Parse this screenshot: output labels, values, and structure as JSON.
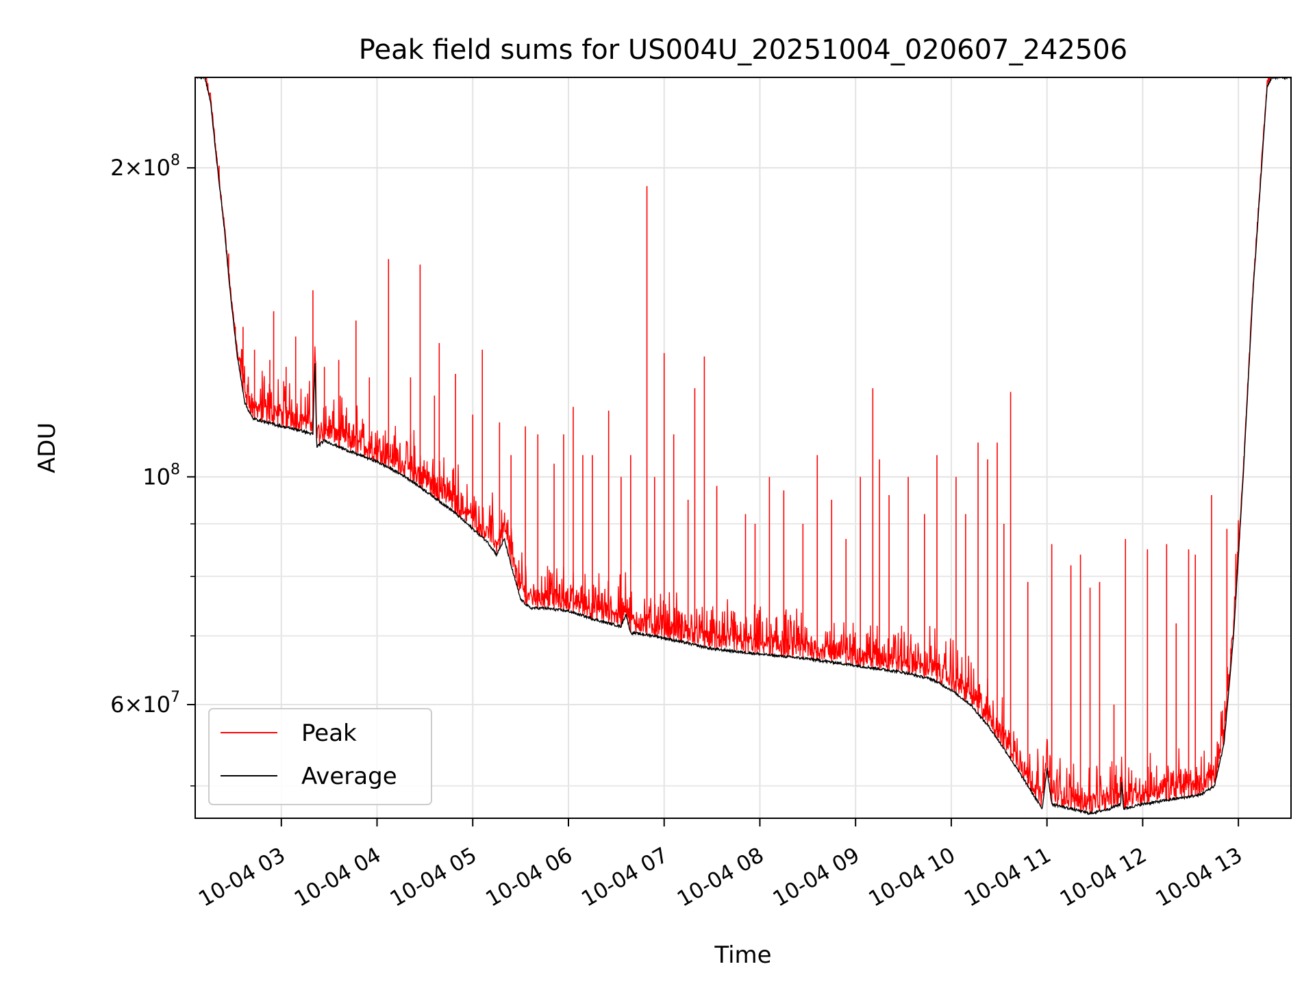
{
  "chart_data": {
    "type": "line",
    "title": "Peak field sums for US004U_20251004_020607_242506",
    "xlabel": "Time",
    "ylabel": "ADU",
    "yscale": "log",
    "ylim": [
      46500000,
      245000000
    ],
    "xlim_hours": [
      2.1,
      13.55
    ],
    "grid": true,
    "legend_position": "lower-left",
    "x_ticks": [
      {
        "hour": 3,
        "label": "10-04 03"
      },
      {
        "hour": 4,
        "label": "10-04 04"
      },
      {
        "hour": 5,
        "label": "10-04 05"
      },
      {
        "hour": 6,
        "label": "10-04 06"
      },
      {
        "hour": 7,
        "label": "10-04 07"
      },
      {
        "hour": 8,
        "label": "10-04 08"
      },
      {
        "hour": 9,
        "label": "10-04 09"
      },
      {
        "hour": 10,
        "label": "10-04 10"
      },
      {
        "hour": 11,
        "label": "10-04 11"
      },
      {
        "hour": 12,
        "label": "10-04 12"
      },
      {
        "hour": 13,
        "label": "10-04 13"
      }
    ],
    "y_major_ticks": [
      {
        "value": 60000000,
        "mantissa": "6",
        "base": "10",
        "exp": "7"
      },
      {
        "value": 100000000,
        "mantissa": "",
        "base": "10",
        "exp": "8"
      },
      {
        "value": 200000000,
        "mantissa": "2",
        "base": "10",
        "exp": "8"
      }
    ],
    "y_minor_ticks": [
      50000000,
      70000000,
      80000000,
      90000000
    ],
    "series": [
      {
        "name": "Peak",
        "color": "#ff0000",
        "baseline_from": "Average",
        "spikes": [
          [
            2.35,
            201000000
          ],
          [
            2.45,
            165000000
          ],
          [
            2.52,
            140000000
          ],
          [
            2.6,
            140000000
          ],
          [
            2.72,
            133000000
          ],
          [
            2.8,
            125000000
          ],
          [
            2.88,
            130000000
          ],
          [
            2.92,
            145000000
          ],
          [
            3.05,
            128000000
          ],
          [
            3.15,
            137000000
          ],
          [
            3.33,
            152000000
          ],
          [
            3.45,
            128000000
          ],
          [
            3.6,
            130000000
          ],
          [
            3.78,
            142000000
          ],
          [
            3.92,
            125000000
          ],
          [
            4.12,
            163000000
          ],
          [
            4.35,
            125000000
          ],
          [
            4.45,
            161000000
          ],
          [
            4.6,
            120000000
          ],
          [
            4.65,
            135000000
          ],
          [
            4.82,
            126000000
          ],
          [
            5.0,
            115000000
          ],
          [
            5.1,
            133000000
          ],
          [
            5.28,
            113000000
          ],
          [
            5.4,
            105000000
          ],
          [
            5.55,
            112000000
          ],
          [
            5.68,
            110000000
          ],
          [
            5.85,
            103000000
          ],
          [
            5.95,
            110000000
          ],
          [
            6.05,
            117000000
          ],
          [
            6.15,
            105000000
          ],
          [
            6.25,
            105000000
          ],
          [
            6.42,
            116000000
          ],
          [
            6.55,
            100000000
          ],
          [
            6.65,
            105000000
          ],
          [
            6.82,
            192000000
          ],
          [
            6.9,
            100000000
          ],
          [
            7.0,
            132000000
          ],
          [
            7.1,
            110000000
          ],
          [
            7.25,
            95000000
          ],
          [
            7.32,
            122000000
          ],
          [
            7.42,
            131000000
          ],
          [
            7.55,
            98000000
          ],
          [
            7.85,
            92000000
          ],
          [
            7.95,
            90000000
          ],
          [
            8.1,
            100000000
          ],
          [
            8.25,
            97000000
          ],
          [
            8.45,
            90000000
          ],
          [
            8.6,
            105000000
          ],
          [
            8.75,
            95000000
          ],
          [
            8.9,
            87000000
          ],
          [
            9.05,
            100000000
          ],
          [
            9.18,
            122000000
          ],
          [
            9.25,
            104000000
          ],
          [
            9.35,
            96000000
          ],
          [
            9.55,
            100000000
          ],
          [
            9.72,
            92000000
          ],
          [
            9.85,
            105000000
          ],
          [
            10.05,
            100000000
          ],
          [
            10.15,
            92000000
          ],
          [
            10.28,
            108000000
          ],
          [
            10.38,
            104000000
          ],
          [
            10.48,
            108000000
          ],
          [
            10.55,
            90000000
          ],
          [
            10.62,
            121000000
          ],
          [
            10.8,
            79000000
          ],
          [
            11.05,
            86000000
          ],
          [
            11.25,
            82000000
          ],
          [
            11.35,
            84000000
          ],
          [
            11.45,
            78000000
          ],
          [
            11.55,
            79000000
          ],
          [
            11.7,
            60000000
          ],
          [
            11.82,
            87000000
          ],
          [
            12.05,
            85000000
          ],
          [
            12.25,
            86000000
          ],
          [
            12.35,
            72000000
          ],
          [
            12.48,
            85000000
          ],
          [
            12.55,
            84000000
          ],
          [
            12.72,
            96000000
          ],
          [
            12.88,
            89000000
          ],
          [
            13.0,
            90000000
          ],
          [
            13.18,
            165000000
          ]
        ]
      },
      {
        "name": "Average",
        "color": "#000000",
        "points": [
          [
            2.1,
            245000000
          ],
          [
            2.2,
            245000000
          ],
          [
            2.26,
            232000000
          ],
          [
            2.32,
            205000000
          ],
          [
            2.4,
            176000000
          ],
          [
            2.47,
            150000000
          ],
          [
            2.54,
            131000000
          ],
          [
            2.62,
            118000000
          ],
          [
            2.7,
            114000000
          ],
          [
            2.85,
            113000000
          ],
          [
            3.0,
            112000000
          ],
          [
            3.2,
            111000000
          ],
          [
            3.33,
            110000000
          ],
          [
            3.35,
            130000000
          ],
          [
            3.37,
            107000000
          ],
          [
            3.45,
            108500000
          ],
          [
            3.7,
            106000000
          ],
          [
            4.0,
            103500000
          ],
          [
            4.3,
            100000000
          ],
          [
            4.5,
            97000000
          ],
          [
            4.8,
            92500000
          ],
          [
            5.0,
            89000000
          ],
          [
            5.15,
            86500000
          ],
          [
            5.25,
            84000000
          ],
          [
            5.33,
            87000000
          ],
          [
            5.4,
            82000000
          ],
          [
            5.5,
            76000000
          ],
          [
            5.6,
            74500000
          ],
          [
            5.75,
            74500000
          ],
          [
            6.0,
            74000000
          ],
          [
            6.3,
            72500000
          ],
          [
            6.55,
            71500000
          ],
          [
            6.6,
            73500000
          ],
          [
            6.65,
            70500000
          ],
          [
            6.9,
            70000000
          ],
          [
            7.2,
            69000000
          ],
          [
            7.5,
            68000000
          ],
          [
            8.0,
            67200000
          ],
          [
            8.5,
            66500000
          ],
          [
            9.0,
            65500000
          ],
          [
            9.5,
            64500000
          ],
          [
            9.8,
            63500000
          ],
          [
            10.0,
            62000000
          ],
          [
            10.2,
            60000000
          ],
          [
            10.4,
            57000000
          ],
          [
            10.6,
            53500000
          ],
          [
            10.8,
            50000000
          ],
          [
            10.95,
            47500000
          ],
          [
            11.0,
            52000000
          ],
          [
            11.05,
            48000000
          ],
          [
            11.25,
            47500000
          ],
          [
            11.45,
            47000000
          ],
          [
            11.65,
            47500000
          ],
          [
            11.77,
            48000000
          ],
          [
            11.78,
            50500000
          ],
          [
            11.8,
            47500000
          ],
          [
            12.0,
            48000000
          ],
          [
            12.3,
            48500000
          ],
          [
            12.6,
            49000000
          ],
          [
            12.75,
            50000000
          ],
          [
            12.85,
            55000000
          ],
          [
            12.95,
            70000000
          ],
          [
            13.05,
            100000000
          ],
          [
            13.15,
            150000000
          ],
          [
            13.25,
            205000000
          ],
          [
            13.3,
            240000000
          ],
          [
            13.35,
            245000000
          ],
          [
            13.55,
            245000000
          ]
        ]
      }
    ]
  }
}
